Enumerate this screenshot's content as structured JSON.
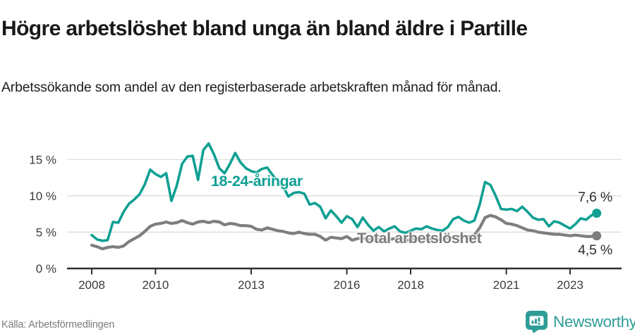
{
  "header": {
    "title": "Högre arbetslöshet bland unga än bland äldre i Partille",
    "subtitle": "Arbetssökande som andel av den registerbaserade arbetskraften månad för månad."
  },
  "chart_data": {
    "type": "line",
    "unit": "%",
    "x_start": 2008,
    "points_per_year": 6,
    "x_ticks": [
      2008,
      2010,
      2013,
      2016,
      2018,
      2021,
      2023
    ],
    "y_ticks": [
      0,
      5,
      10,
      15
    ],
    "y_tick_labels": [
      "0 %",
      "5 %",
      "10 %",
      "15 %"
    ],
    "ylim": [
      0,
      17.5
    ],
    "xlim_years": [
      2008,
      2023.9
    ],
    "grid": true,
    "legend_position": "inline-annotations",
    "series": [
      {
        "name": "18-24-åringar",
        "color": "#0fa093",
        "end_label": "7,6 %",
        "end_value": 7.6,
        "values": [
          4.6,
          4.0,
          3.8,
          3.9,
          6.4,
          6.3,
          7.8,
          8.9,
          9.5,
          10.2,
          11.6,
          13.6,
          13.0,
          12.6,
          13.1,
          9.3,
          11.4,
          14.4,
          15.4,
          15.5,
          12.2,
          16.3,
          17.2,
          15.7,
          13.8,
          13.1,
          14.4,
          15.9,
          14.6,
          13.8,
          13.4,
          13.2,
          13.7,
          13.9,
          12.9,
          12.0,
          11.3,
          9.9,
          10.4,
          10.5,
          10.3,
          8.8,
          9.0,
          8.5,
          6.9,
          8.0,
          7.2,
          6.3,
          7.2,
          6.8,
          5.7,
          7.0,
          6.0,
          5.2,
          5.7,
          5.1,
          5.5,
          5.8,
          5.1,
          4.9,
          5.2,
          5.5,
          5.4,
          5.8,
          5.5,
          5.3,
          5.2,
          5.7,
          6.8,
          7.1,
          6.6,
          6.3,
          6.6,
          8.8,
          11.9,
          11.5,
          10.0,
          8.2,
          8.1,
          8.2,
          7.9,
          8.5,
          7.8,
          7.0,
          6.7,
          6.8,
          5.8,
          6.5,
          6.3,
          5.9,
          5.5,
          6.1,
          6.9,
          6.7,
          7.3,
          7.6
        ]
      },
      {
        "name": "Total arbetslöshet",
        "color": "#7e7e7e",
        "end_label": "4,5 %",
        "end_value": 4.5,
        "values": [
          3.2,
          3.0,
          2.7,
          2.9,
          3.0,
          2.9,
          3.1,
          3.7,
          4.1,
          4.5,
          5.1,
          5.8,
          6.1,
          6.2,
          6.4,
          6.2,
          6.3,
          6.6,
          6.3,
          6.1,
          6.4,
          6.5,
          6.3,
          6.5,
          6.4,
          6.0,
          6.2,
          6.1,
          5.9,
          5.9,
          5.8,
          5.4,
          5.3,
          5.6,
          5.4,
          5.2,
          5.1,
          4.9,
          4.8,
          5.0,
          4.8,
          4.7,
          4.7,
          4.4,
          3.9,
          4.3,
          4.2,
          4.1,
          4.4,
          3.9,
          4.1,
          4.2,
          4.0,
          3.9,
          4.0,
          3.9,
          4.0,
          4.1,
          3.9,
          3.8,
          4.0,
          4.1,
          4.0,
          4.1,
          4.0,
          4.0,
          4.1,
          4.2,
          4.3,
          4.4,
          4.3,
          4.4,
          4.6,
          5.6,
          7.0,
          7.3,
          7.1,
          6.7,
          6.2,
          6.1,
          5.9,
          5.6,
          5.3,
          5.2,
          5.0,
          4.9,
          4.8,
          4.7,
          4.7,
          4.6,
          4.5,
          4.6,
          4.5,
          4.4,
          4.4,
          4.5
        ]
      }
    ]
  },
  "footer": {
    "source": "Källa: Arbetsförmedlingen",
    "brand": "Newsworthy"
  },
  "colors": {
    "accent_teal": "#0fa093",
    "series_gray": "#7e7e7e",
    "grid": "#d9d9d9",
    "axis": "#303030",
    "brand_teal": "#2f9d97",
    "title_text": "#191919",
    "tick_text": "#3c3c3c"
  }
}
